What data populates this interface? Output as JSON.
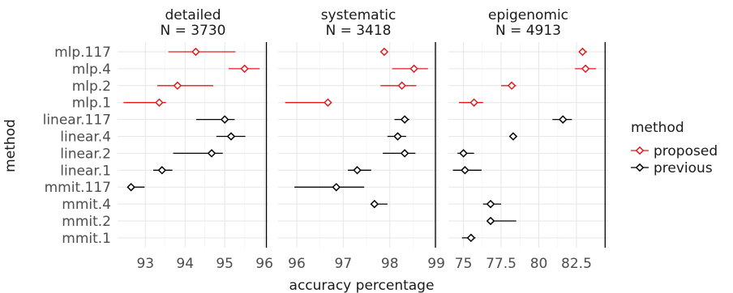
{
  "chart_data": {
    "type": "dot-interval",
    "xlabel": "accuracy percentage",
    "ylabel": "method",
    "categories": [
      "mlp.117",
      "mlp.4",
      "mlp.2",
      "mlp.1",
      "linear.117",
      "linear.4",
      "linear.2",
      "linear.1",
      "mmit.117",
      "mmit.4",
      "mmit.2",
      "mmit.1"
    ],
    "legend": {
      "title": "method",
      "position": "right",
      "entries": [
        {
          "label": "proposed",
          "color": "#e31a1c"
        },
        {
          "label": "previous",
          "color": "#000000"
        }
      ]
    },
    "grid": true,
    "panels": [
      {
        "title": "detailed",
        "subtitle": "N = 3730",
        "xlim": [
          92.3,
          96.1
        ],
        "ticks": [
          93,
          94,
          95,
          96
        ],
        "tick_labels": [
          "93",
          "94",
          "95",
          "96"
        ],
        "reference_line": 96.05,
        "points": [
          {
            "method": "mlp.117",
            "group": "proposed",
            "mean": 94.27,
            "lo": 93.58,
            "hi": 95.27
          },
          {
            "method": "mlp.4",
            "group": "proposed",
            "mean": 95.5,
            "lo": 95.1,
            "hi": 95.88
          },
          {
            "method": "mlp.2",
            "group": "proposed",
            "mean": 93.81,
            "lo": 93.3,
            "hi": 94.71
          },
          {
            "method": "mlp.1",
            "group": "proposed",
            "mean": 93.35,
            "lo": 92.45,
            "hi": 93.52
          },
          {
            "method": "linear.117",
            "group": "previous",
            "mean": 95.0,
            "lo": 94.28,
            "hi": 95.25
          },
          {
            "method": "linear.4",
            "group": "previous",
            "mean": 95.16,
            "lo": 94.79,
            "hi": 95.52
          },
          {
            "method": "linear.2",
            "group": "previous",
            "mean": 94.67,
            "lo": 93.7,
            "hi": 94.95
          },
          {
            "method": "linear.1",
            "group": "previous",
            "mean": 93.42,
            "lo": 93.2,
            "hi": 93.68
          },
          {
            "method": "mmit.117",
            "group": "previous",
            "mean": 92.64,
            "lo": 92.55,
            "hi": 92.98
          }
        ]
      },
      {
        "title": "systematic",
        "subtitle": "N = 3418",
        "xlim": [
          95.6,
          99.05
        ],
        "ticks": [
          96,
          97,
          98,
          99
        ],
        "tick_labels": [
          "96",
          "97",
          "98",
          "99"
        ],
        "reference_line": 98.98,
        "points": [
          {
            "method": "mlp.117",
            "group": "proposed",
            "mean": 97.88,
            "lo": 97.82,
            "hi": 97.95
          },
          {
            "method": "mlp.4",
            "group": "proposed",
            "mean": 98.52,
            "lo": 98.05,
            "hi": 98.82
          },
          {
            "method": "mlp.2",
            "group": "proposed",
            "mean": 98.26,
            "lo": 97.8,
            "hi": 98.57
          },
          {
            "method": "mlp.1",
            "group": "proposed",
            "mean": 96.67,
            "lo": 95.75,
            "hi": 96.67
          },
          {
            "method": "linear.117",
            "group": "previous",
            "mean": 98.32,
            "lo": 98.1,
            "hi": 98.42
          },
          {
            "method": "linear.4",
            "group": "previous",
            "mean": 98.17,
            "lo": 97.95,
            "hi": 98.35
          },
          {
            "method": "linear.2",
            "group": "previous",
            "mean": 98.32,
            "lo": 97.85,
            "hi": 98.55
          },
          {
            "method": "linear.1",
            "group": "previous",
            "mean": 97.3,
            "lo": 97.1,
            "hi": 97.6
          },
          {
            "method": "mmit.117",
            "group": "previous",
            "mean": 96.85,
            "lo": 95.95,
            "hi": 97.45
          },
          {
            "method": "mmit.4",
            "group": "previous",
            "mean": 97.67,
            "lo": 97.62,
            "hi": 97.95
          }
        ]
      },
      {
        "title": "epigenomic",
        "subtitle": "N = 4913",
        "xlim": [
          74,
          84.6
        ],
        "ticks": [
          75,
          77.5,
          80,
          82.5
        ],
        "tick_labels": [
          "75",
          "77.5",
          "80",
          "82.5"
        ],
        "reference_line": 84.4,
        "points": [
          {
            "method": "mlp.117",
            "group": "proposed",
            "mean": 82.9,
            "lo": 82.7,
            "hi": 83.2
          },
          {
            "method": "mlp.4",
            "group": "proposed",
            "mean": 83.1,
            "lo": 82.4,
            "hi": 83.8
          },
          {
            "method": "mlp.2",
            "group": "proposed",
            "mean": 78.2,
            "lo": 77.5,
            "hi": 78.5
          },
          {
            "method": "mlp.1",
            "group": "proposed",
            "mean": 75.7,
            "lo": 74.7,
            "hi": 76.3
          },
          {
            "method": "linear.117",
            "group": "previous",
            "mean": 81.6,
            "lo": 80.9,
            "hi": 82.2
          },
          {
            "method": "linear.4",
            "group": "previous",
            "mean": 78.3,
            "lo": 78.2,
            "hi": 78.5
          },
          {
            "method": "linear.2",
            "group": "previous",
            "mean": 75.0,
            "lo": 74.6,
            "hi": 75.7
          },
          {
            "method": "linear.1",
            "group": "previous",
            "mean": 75.1,
            "lo": 74.3,
            "hi": 76.2
          },
          {
            "method": "mmit.4",
            "group": "previous",
            "mean": 76.8,
            "lo": 76.3,
            "hi": 77.5
          },
          {
            "method": "mmit.2",
            "group": "previous",
            "mean": 76.8,
            "lo": 76.6,
            "hi": 78.5
          },
          {
            "method": "mmit.1",
            "group": "previous",
            "mean": 75.5,
            "lo": 74.9,
            "hi": 75.8
          }
        ]
      }
    ]
  }
}
